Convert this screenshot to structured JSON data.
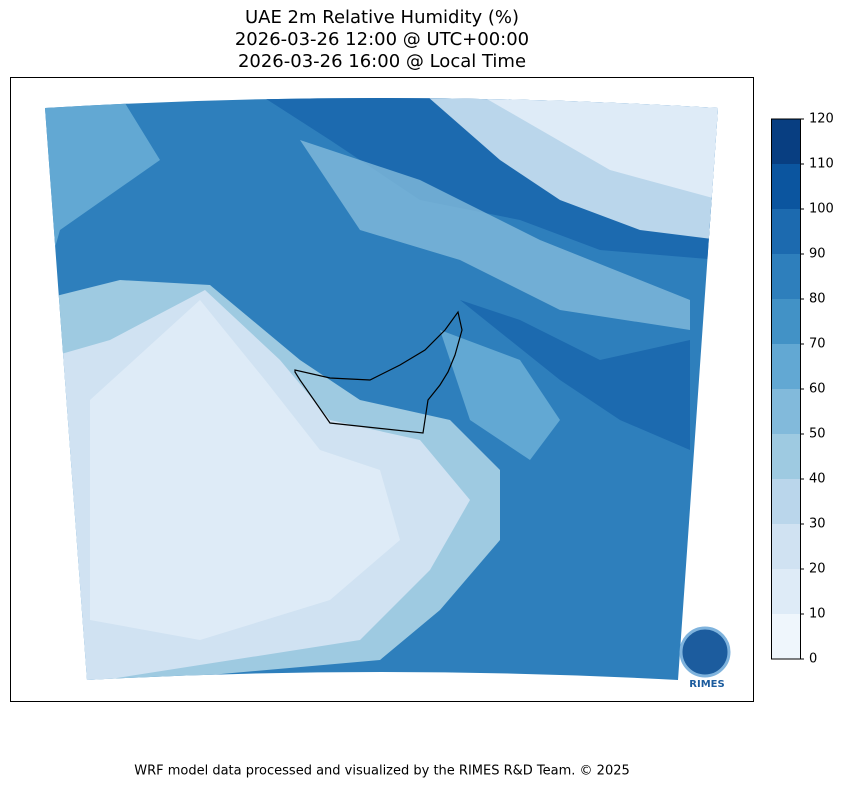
{
  "header": {
    "title_lines": [
      "UAE 2m Relative Humidity (%)",
      "2026-03-26 12:00 @ UTC+00:00",
      "2026-03-26 16:00 @ Local Time"
    ]
  },
  "colorbar": {
    "ticks": [
      0,
      10,
      20,
      30,
      40,
      50,
      60,
      70,
      80,
      90,
      100,
      110,
      120
    ],
    "colors": [
      "#eff6fc",
      "#deebf7",
      "#d0e2f2",
      "#bad6eb",
      "#9ecae1",
      "#82badb",
      "#62a8d3",
      "#4292c6",
      "#2e7fbc",
      "#1c6aaf",
      "#0b559f",
      "#083e81"
    ]
  },
  "logo": {
    "label": "RIMES"
  },
  "footer": {
    "text": "WRF model data processed and visualized by the RIMES R&D Team. © 2025"
  }
}
